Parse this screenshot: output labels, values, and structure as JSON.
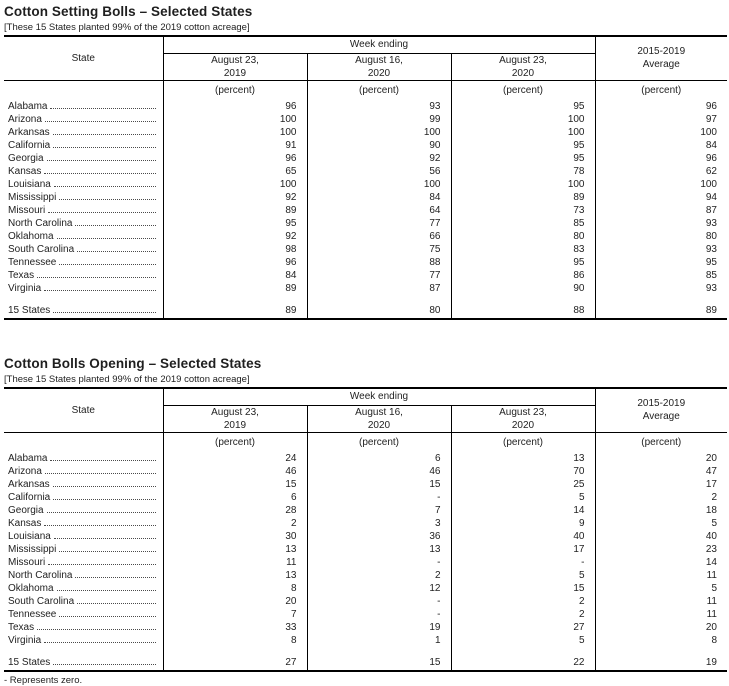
{
  "footnote": "- Represents zero.",
  "tables": [
    {
      "title": "Cotton Setting Bolls – Selected States",
      "subtitle": "[These 15 States planted 99% of the 2019 cotton acreage]",
      "header": {
        "state_label": "State",
        "week_ending_label": "Week ending",
        "columns": [
          "August 23,\n2019",
          "August 16,\n2020",
          "August 23,\n2020"
        ],
        "average_label": "2015-2019\nAverage",
        "unit": "(percent)"
      },
      "rows": [
        {
          "state": "Alabama",
          "values": [
            "96",
            "93",
            "95",
            "96"
          ]
        },
        {
          "state": "Arizona",
          "values": [
            "100",
            "99",
            "100",
            "97"
          ]
        },
        {
          "state": "Arkansas",
          "values": [
            "100",
            "100",
            "100",
            "100"
          ]
        },
        {
          "state": "California",
          "values": [
            "91",
            "90",
            "95",
            "84"
          ]
        },
        {
          "state": "Georgia",
          "values": [
            "96",
            "92",
            "95",
            "96"
          ]
        },
        {
          "state": "Kansas",
          "values": [
            "65",
            "56",
            "78",
            "62"
          ]
        },
        {
          "state": "Louisiana",
          "values": [
            "100",
            "100",
            "100",
            "100"
          ]
        },
        {
          "state": "Mississippi",
          "values": [
            "92",
            "84",
            "89",
            "94"
          ]
        },
        {
          "state": "Missouri",
          "values": [
            "89",
            "64",
            "73",
            "87"
          ]
        },
        {
          "state": "North Carolina",
          "values": [
            "95",
            "77",
            "85",
            "93"
          ]
        },
        {
          "state": "Oklahoma",
          "values": [
            "92",
            "66",
            "80",
            "80"
          ]
        },
        {
          "state": "South Carolina",
          "values": [
            "98",
            "75",
            "83",
            "93"
          ]
        },
        {
          "state": "Tennessee",
          "values": [
            "96",
            "88",
            "95",
            "95"
          ]
        },
        {
          "state": "Texas",
          "values": [
            "84",
            "77",
            "86",
            "85"
          ]
        },
        {
          "state": "Virginia",
          "values": [
            "89",
            "87",
            "90",
            "93"
          ]
        }
      ],
      "total": {
        "state": "15 States",
        "values": [
          "89",
          "80",
          "88",
          "89"
        ]
      }
    },
    {
      "title": "Cotton Bolls Opening – Selected States",
      "subtitle": "[These 15 States planted 99% of the 2019 cotton acreage]",
      "header": {
        "state_label": "State",
        "week_ending_label": "Week ending",
        "columns": [
          "August 23,\n2019",
          "August 16,\n2020",
          "August 23,\n2020"
        ],
        "average_label": "2015-2019\nAverage",
        "unit": "(percent)"
      },
      "rows": [
        {
          "state": "Alabama",
          "values": [
            "24",
            "6",
            "13",
            "20"
          ]
        },
        {
          "state": "Arizona",
          "values": [
            "46",
            "46",
            "70",
            "47"
          ]
        },
        {
          "state": "Arkansas",
          "values": [
            "15",
            "15",
            "25",
            "17"
          ]
        },
        {
          "state": "California",
          "values": [
            "6",
            "-",
            "5",
            "2"
          ]
        },
        {
          "state": "Georgia",
          "values": [
            "28",
            "7",
            "14",
            "18"
          ]
        },
        {
          "state": "Kansas",
          "values": [
            "2",
            "3",
            "9",
            "5"
          ]
        },
        {
          "state": "Louisiana",
          "values": [
            "30",
            "36",
            "40",
            "40"
          ]
        },
        {
          "state": "Mississippi",
          "values": [
            "13",
            "13",
            "17",
            "23"
          ]
        },
        {
          "state": "Missouri",
          "values": [
            "11",
            "-",
            "-",
            "14"
          ]
        },
        {
          "state": "North Carolina",
          "values": [
            "13",
            "2",
            "5",
            "11"
          ]
        },
        {
          "state": "Oklahoma",
          "values": [
            "8",
            "12",
            "15",
            "5"
          ]
        },
        {
          "state": "South Carolina",
          "values": [
            "20",
            "-",
            "2",
            "11"
          ]
        },
        {
          "state": "Tennessee",
          "values": [
            "7",
            "-",
            "2",
            "11"
          ]
        },
        {
          "state": "Texas",
          "values": [
            "33",
            "19",
            "27",
            "20"
          ]
        },
        {
          "state": "Virginia",
          "values": [
            "8",
            "1",
            "5",
            "8"
          ]
        }
      ],
      "total": {
        "state": "15 States",
        "values": [
          "27",
          "15",
          "22",
          "19"
        ]
      }
    }
  ]
}
